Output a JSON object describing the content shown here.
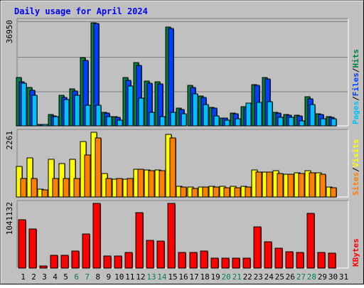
{
  "chart_data": {
    "type": "bar",
    "title": "Daily usage for April 2024",
    "days": [
      "1",
      "2",
      "3",
      "4",
      "5",
      "6",
      "7",
      "8",
      "9",
      "10",
      "11",
      "12",
      "13",
      "14",
      "15",
      "16",
      "17",
      "18",
      "19",
      "20",
      "21",
      "22",
      "23",
      "24",
      "25",
      "26",
      "27",
      "28",
      "29",
      "30",
      "31"
    ],
    "weekend_days": [
      "6",
      "7",
      "13",
      "14",
      "20",
      "21",
      "27",
      "28"
    ],
    "panels": [
      {
        "id": "hits-files-pages",
        "ymax": 36950,
        "ymax_label": "36950",
        "legend": [
          {
            "label": "Pages",
            "color": "#00c0ff"
          },
          {
            "label": "Files",
            "color": "#0040ff"
          },
          {
            "label": "Hits",
            "color": "#008040"
          }
        ],
        "legend_sep": "/",
        "series": [
          {
            "name": "Hits",
            "color": "#008040",
            "values": [
              17200,
              13500,
              600,
              3900,
              10900,
              13100,
              24200,
              36500,
              4900,
              3200,
              17200,
              22300,
              15900,
              15600,
              35000,
              6200,
              14300,
              10600,
              6600,
              2800,
              4500,
              6700,
              14700,
              17000,
              4900,
              4100,
              3800,
              10200,
              4300,
              3300,
              null
            ]
          },
          {
            "name": "Files",
            "color": "#0040ff",
            "values": [
              15600,
              12600,
              600,
              3500,
              10100,
              12200,
              23100,
              36100,
              4600,
              2900,
              16000,
              21300,
              15100,
              14800,
              34500,
              5900,
              13500,
              10100,
              6200,
              2700,
              4200,
              6400,
              14300,
              16600,
              4500,
              3800,
              3600,
              9600,
              4000,
              3100,
              null
            ]
          },
          {
            "name": "Pages",
            "color": "#00c0ff",
            "values": [
              15100,
              10700,
              600,
              3200,
              9300,
              10800,
              7400,
              7200,
              3200,
              1900,
              14000,
              9700,
              4800,
              3300,
              4800,
              4200,
              11200,
              7600,
              3500,
              2100,
              2600,
              8100,
              8200,
              8500,
              3100,
              2900,
              1800,
              7500,
              2400,
              2400,
              null
            ]
          }
        ]
      },
      {
        "id": "visits-sites",
        "ymax": 2261,
        "ymax_label": "2261",
        "legend": [
          {
            "label": "Sites",
            "color": "#ff8000"
          },
          {
            "label": "Visits",
            "color": "#ffff00"
          }
        ],
        "legend_sep": "/",
        "series": [
          {
            "name": "Visits",
            "color": "#ffff00",
            "values": [
              1080,
              1370,
              280,
              1320,
              1170,
              1320,
              1930,
              2261,
              820,
              630,
              620,
              980,
              950,
              940,
              2180,
              380,
              340,
              360,
              370,
              370,
              380,
              380,
              940,
              880,
              920,
              790,
              850,
              910,
              850,
              360,
              null
            ]
          },
          {
            "name": "Sites",
            "color": "#ff8000",
            "values": [
              640,
              640,
              240,
              640,
              640,
              640,
              1470,
              2070,
              640,
              640,
              640,
              960,
              930,
              930,
              2070,
              350,
              310,
              340,
              340,
              330,
              330,
              350,
              860,
              870,
              810,
              800,
              810,
              850,
              800,
              330,
              null
            ]
          }
        ]
      },
      {
        "id": "kbytes",
        "ymax": 1041132,
        "ymax_label": "1041132",
        "legend": [
          {
            "label": "KBytes",
            "color": "#ff0000"
          }
        ],
        "legend_sep": "",
        "series": [
          {
            "name": "KBytes",
            "color": "#ff0000",
            "values": [
              780000,
              630000,
              40000,
              210000,
              210000,
              280000,
              550000,
              1041132,
              200000,
              200000,
              250000,
              890000,
              450000,
              430000,
              1041132,
              250000,
              250000,
              270000,
              160000,
              160000,
              160000,
              160000,
              660000,
              420000,
              320000,
              260000,
              250000,
              880000,
              250000,
              240000,
              null
            ]
          }
        ]
      }
    ]
  }
}
